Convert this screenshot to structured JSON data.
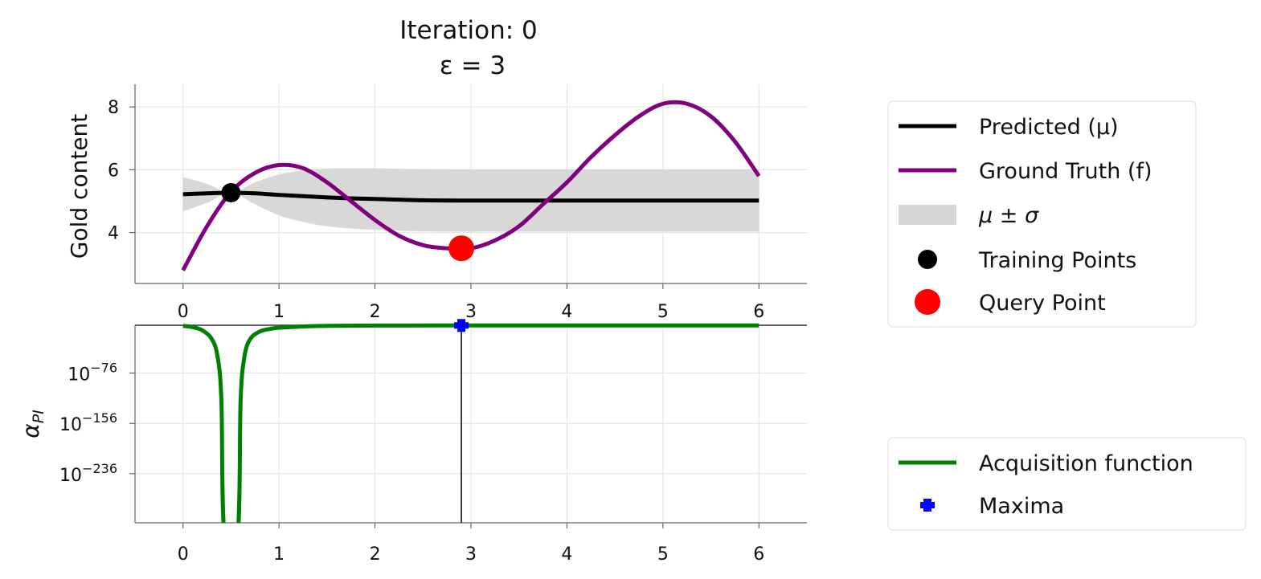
{
  "chart_data": [
    {
      "type": "line",
      "title": "Iteration: 0",
      "subtitle": "ε = 3",
      "xlabel": "",
      "ylabel": "Gold content",
      "xlim": [
        -0.5,
        6.5
      ],
      "ylim": [
        2.38,
        8.72
      ],
      "xticks": [
        "0",
        "1",
        "2",
        "3",
        "4",
        "5",
        "6"
      ],
      "yticks": [
        "4",
        "6",
        "8"
      ],
      "grid": true,
      "legend_position": "right",
      "series": [
        {
          "name": "Predicted (μ)",
          "color": "#000000",
          "x": [
            0,
            0.25,
            0.5,
            0.75,
            1,
            1.25,
            1.5,
            1.75,
            2,
            2.5,
            3,
            3.5,
            4,
            5,
            6
          ],
          "y": [
            5.22,
            5.25,
            5.27,
            5.25,
            5.2,
            5.16,
            5.12,
            5.09,
            5.07,
            5.03,
            5.02,
            5.02,
            5.02,
            5.02,
            5.02
          ]
        },
        {
          "name": "Ground Truth (f)",
          "color": "#800080",
          "x": [
            0,
            0.25,
            0.5,
            0.75,
            1,
            1.25,
            1.5,
            1.75,
            2,
            2.25,
            2.5,
            2.75,
            3,
            3.25,
            3.5,
            3.75,
            4,
            4.25,
            4.5,
            4.75,
            5,
            5.25,
            5.5,
            5.75,
            6
          ],
          "y": [
            2.8,
            4.2,
            5.3,
            5.9,
            6.15,
            6.05,
            5.6,
            5.0,
            4.4,
            3.9,
            3.6,
            3.5,
            3.5,
            3.75,
            4.2,
            4.9,
            5.6,
            6.4,
            7.1,
            7.7,
            8.1,
            8.1,
            7.7,
            6.9,
            5.8
          ]
        },
        {
          "name": "μ ± σ",
          "color": "#d6d6d6",
          "x": [
            0,
            0.25,
            0.5,
            0.75,
            1,
            1.25,
            1.5,
            1.75,
            2,
            2.5,
            3,
            4,
            5,
            6
          ],
          "sigma": [
            0.55,
            0.3,
            0,
            0.35,
            0.65,
            0.82,
            0.92,
            0.96,
            0.98,
            0.99,
            0.99,
            0.99,
            0.99,
            0.99
          ]
        },
        {
          "name": "Training Points",
          "color": "#000000",
          "type": "scatter",
          "x": [
            0.5
          ],
          "y": [
            5.27
          ]
        },
        {
          "name": "Query Point",
          "color": "#ff0000",
          "type": "scatter",
          "x": [
            2.9
          ],
          "y": [
            3.5
          ]
        }
      ]
    },
    {
      "type": "line",
      "xlabel": "",
      "ylabel": "α_PI",
      "yscale": "log",
      "xlim": [
        -0.5,
        6.5
      ],
      "ylim_log10": [
        -314,
        0
      ],
      "xticks": [
        "0",
        "1",
        "2",
        "3",
        "4",
        "5",
        "6"
      ],
      "yticks": [
        {
          "base": "10",
          "exp": "−76"
        },
        {
          "base": "10",
          "exp": "−156"
        },
        {
          "base": "10",
          "exp": "−236"
        }
      ],
      "grid": true,
      "legend_position": "right",
      "series": [
        {
          "name": "Acquisition function",
          "color": "#008000",
          "x": [
            0,
            0.1,
            0.2,
            0.3,
            0.36,
            0.4,
            0.43,
            0.57,
            0.6,
            0.64,
            0.7,
            0.8,
            0.9,
            1,
            1.25,
            1.5,
            2,
            3,
            4,
            5,
            6
          ],
          "log10_y": [
            -1,
            -3,
            -8,
            -22,
            -50,
            -120,
            -330,
            -330,
            -120,
            -50,
            -22,
            -10,
            -6,
            -4,
            -2,
            -1,
            -0.5,
            -0.3,
            -0.3,
            -0.3,
            -0.3
          ]
        },
        {
          "name": "Maxima",
          "color": "#0000ff",
          "type": "scatter",
          "x": [
            2.9
          ],
          "log10_y": [
            -0.3
          ]
        }
      ]
    }
  ],
  "legend_top": [
    "Predicted (μ)",
    "Ground Truth (f)",
    "μ ± σ",
    "Training Points",
    "Query Point"
  ],
  "legend_bottom": [
    "Acquisition function",
    "Maxima"
  ]
}
